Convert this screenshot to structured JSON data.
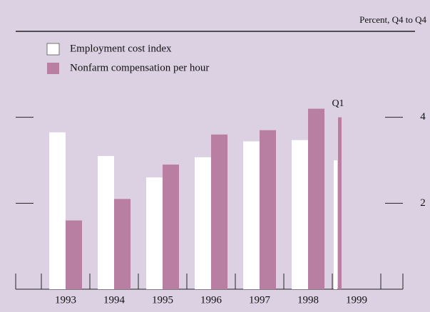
{
  "chart_data": {
    "type": "bar",
    "subtitle": "Percent, Q4 to Q4",
    "categories": [
      "1993",
      "1994",
      "1995",
      "1996",
      "1997",
      "1998",
      "1999"
    ],
    "series": [
      {
        "name": "Employment cost index",
        "color": "#ffffff",
        "values": [
          3.65,
          3.1,
          2.6,
          3.07,
          3.44,
          3.47,
          3.0
        ]
      },
      {
        "name": "Nonfarm compensation per hour",
        "color": "#b97fa3",
        "values": [
          1.6,
          2.1,
          2.9,
          3.6,
          3.7,
          4.2,
          4.0
        ]
      }
    ],
    "annotations": [
      {
        "text": "Q1",
        "category": "1999"
      }
    ],
    "ylim": [
      0,
      6
    ],
    "yticks": [
      2,
      4
    ]
  }
}
